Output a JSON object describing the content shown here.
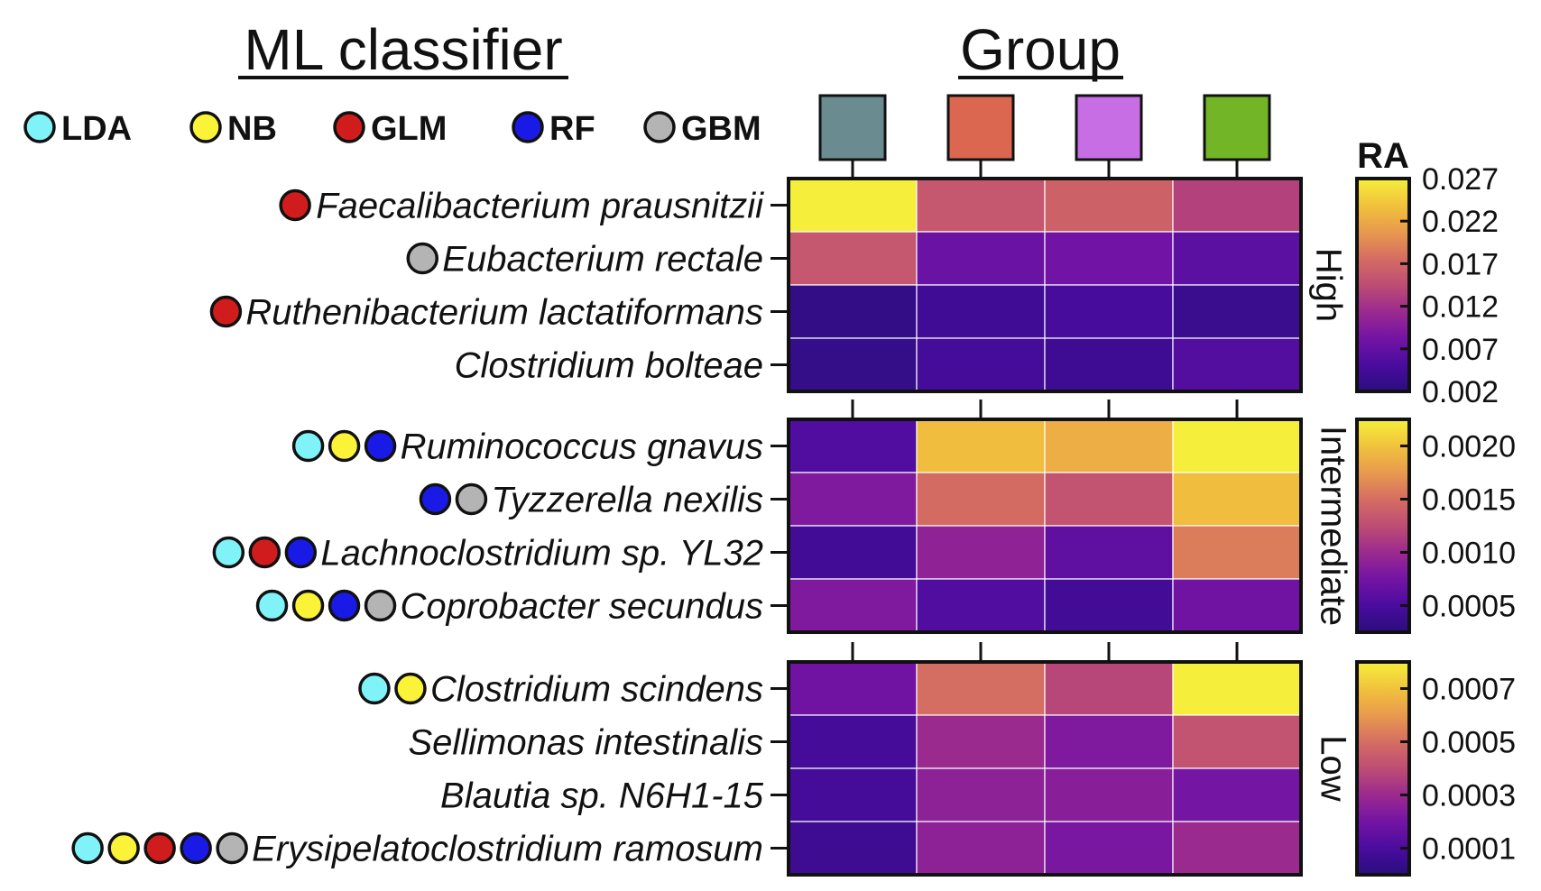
{
  "chart_data": {
    "type": "heatmap",
    "headers": {
      "left": "ML classifier",
      "right": "Group"
    },
    "classifier_legend": [
      {
        "key": "LDA",
        "label": "LDA",
        "color": "#7ff3f7"
      },
      {
        "key": "NB",
        "label": "NB",
        "color": "#fbf337"
      },
      {
        "key": "GLM",
        "label": "GLM",
        "color": "#d01c1c"
      },
      {
        "key": "RF",
        "label": "RF",
        "color": "#1a1ae6"
      },
      {
        "key": "GBM",
        "label": "GBM",
        "color": "#b4b4b4"
      }
    ],
    "groups": [
      {
        "color": "#6a8c90"
      },
      {
        "color": "#db6750"
      },
      {
        "color": "#c86ee4"
      },
      {
        "color": "#72b627"
      }
    ],
    "colormap": "plasma",
    "colorbar_title": "RA",
    "panels": [
      {
        "label": "High",
        "range": [
          0.002,
          0.027
        ],
        "colorbar_ticks": [
          "0.027",
          "0.022",
          "0.017",
          "0.012",
          "0.007",
          "0.002"
        ],
        "rows": [
          {
            "species": "Faecalibacterium prausnitzii",
            "classifiers": [
              "GLM"
            ],
            "values": [
              0.027,
              0.0155,
              0.0165,
              0.0135
            ]
          },
          {
            "species": "Eubacterium rectale",
            "classifiers": [
              "GBM"
            ],
            "values": [
              0.0155,
              0.0075,
              0.008,
              0.0065
            ]
          },
          {
            "species": "Ruthenibacterium lactatiformans",
            "classifiers": [
              "GLM"
            ],
            "values": [
              0.0028,
              0.0042,
              0.0048,
              0.0035
            ]
          },
          {
            "species": "Clostridium bolteae",
            "classifiers": [],
            "values": [
              0.003,
              0.0045,
              0.004,
              0.0058
            ]
          }
        ]
      },
      {
        "label": "Intermediate",
        "range": [
          0.0,
          0.0021
        ],
        "colorbar_ticks": [
          "0.0020",
          "0.0015",
          "0.0010",
          "0.0005"
        ],
        "rows": [
          {
            "species": "Ruminococcus gnavus",
            "classifiers": [
              "LDA",
              "NB",
              "RF"
            ],
            "values": [
              0.0003,
              0.0018,
              0.0017,
              0.0021
            ]
          },
          {
            "species": "Tyzzerella nexilis",
            "classifiers": [
              "RF",
              "GBM"
            ],
            "values": [
              0.0006,
              0.0013,
              0.0011,
              0.0018
            ]
          },
          {
            "species": "Lachnoclostridium sp. YL32",
            "classifiers": [
              "LDA",
              "GLM",
              "RF"
            ],
            "values": [
              0.0002,
              0.0007,
              0.0004,
              0.0014
            ]
          },
          {
            "species": "Coprobacter secundus",
            "classifiers": [
              "LDA",
              "NB",
              "RF",
              "GBM"
            ],
            "values": [
              0.0006,
              0.0003,
              0.0002,
              0.0005
            ]
          }
        ]
      },
      {
        "label": "Low",
        "range": [
          5e-05,
          0.00072
        ],
        "colorbar_ticks": [
          "0.0007",
          "0.0005",
          "0.0003",
          "0.0001"
        ],
        "rows": [
          {
            "species": "Clostridium scindens",
            "classifiers": [
              "LDA",
              "NB"
            ],
            "values": [
              0.00021,
              0.00047,
              0.00037,
              0.00072
            ]
          },
          {
            "species": "Sellimonas intestinalis",
            "classifiers": [],
            "values": [
              0.00012,
              0.0003,
              0.00024,
              0.0004
            ]
          },
          {
            "species": "Blautia sp. N6H1-15",
            "classifiers": [],
            "values": [
              0.00012,
              0.00027,
              0.00026,
              0.00022
            ]
          },
          {
            "species": "Erysipelatoclostridium ramosum",
            "classifiers": [
              "LDA",
              "NB",
              "GLM",
              "RF",
              "GBM"
            ],
            "values": [
              0.0001,
              0.00027,
              0.00023,
              0.0003
            ]
          }
        ]
      }
    ]
  }
}
